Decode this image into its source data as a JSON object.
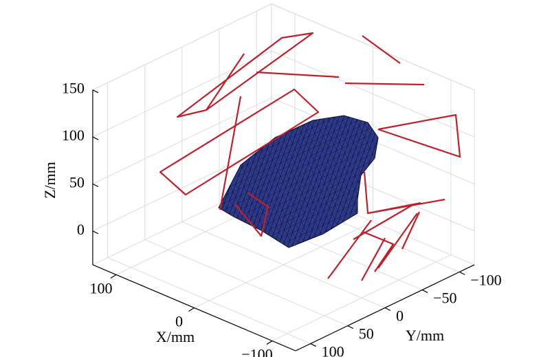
{
  "chart_data": {
    "type": "surface3d",
    "xlabel": "X/mm",
    "ylabel": "Y/mm",
    "zlabel": "Z/mm",
    "xlim": [
      -130,
      130
    ],
    "ylim": [
      -120,
      120
    ],
    "zlim": [
      -36,
      150
    ],
    "xticks": [
      {
        "value": -100,
        "label": "−100"
      },
      0,
      100
    ],
    "yticks": [
      {
        "value": -100,
        "label": "−100"
      },
      {
        "value": -50,
        "label": "−50"
      },
      0,
      50,
      100
    ],
    "zticks": [
      0,
      50,
      100,
      150
    ],
    "grid": true
  }
}
